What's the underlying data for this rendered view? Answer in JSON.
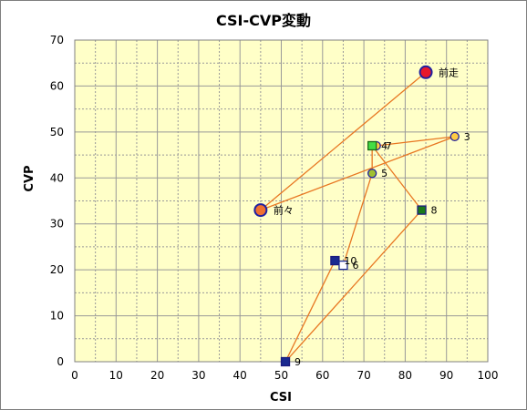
{
  "chart_data": {
    "type": "scatter",
    "title": "CSI-CVP変動",
    "xlabel": "CSI",
    "ylabel": "CVP",
    "xlim": [
      0,
      100
    ],
    "ylim": [
      0,
      70
    ],
    "xticks": [
      0,
      10,
      20,
      30,
      40,
      50,
      60,
      70,
      80,
      90,
      100
    ],
    "yticks": [
      0,
      10,
      20,
      30,
      40,
      50,
      60,
      70
    ],
    "grid": true,
    "colors": {
      "plot_bg": "#ffffc8",
      "grid": "#999999",
      "line": "#e87722"
    },
    "points": [
      {
        "label": "前々",
        "x": 45,
        "y": 33,
        "shape": "circle",
        "fill": "#f07030",
        "stroke": "#2020a0",
        "size": "large"
      },
      {
        "label": "前走",
        "x": 85,
        "y": 63,
        "shape": "circle",
        "fill": "#e8192c",
        "stroke": "#2020a0",
        "size": "large"
      },
      {
        "label": "3",
        "x": 92,
        "y": 49,
        "shape": "circle",
        "fill": "#ffcc44",
        "stroke": "#2020a0",
        "size": "small"
      },
      {
        "label": "5",
        "x": 72,
        "y": 41,
        "shape": "circle",
        "fill": "#a0c030",
        "stroke": "#2020a0",
        "size": "small"
      },
      {
        "label": "7",
        "x": 73,
        "y": 47,
        "shape": "circle",
        "fill": "#ffcc44",
        "stroke": "#2020a0",
        "size": "small"
      },
      {
        "label": "4",
        "x": 72,
        "y": 47,
        "shape": "square",
        "fill": "#44dd44",
        "stroke": "#1a6a1a",
        "size": "small"
      },
      {
        "label": "8",
        "x": 84,
        "y": 33,
        "shape": "square",
        "fill": "#1a7a1a",
        "stroke": "#1a1a80",
        "size": "small"
      },
      {
        "label": "10",
        "x": 63,
        "y": 22,
        "shape": "square",
        "fill": "#1a2a90",
        "stroke": "#1a1a80",
        "size": "small"
      },
      {
        "label": "6",
        "x": 65,
        "y": 21,
        "shape": "square",
        "fill": "#ffffff",
        "stroke": "#1a2a90",
        "size": "small"
      },
      {
        "label": "9",
        "x": 51,
        "y": 0,
        "shape": "square",
        "fill": "#1a2a90",
        "stroke": "#1a1a80",
        "size": "small"
      }
    ],
    "path": [
      [
        85,
        63
      ],
      [
        45,
        33
      ],
      [
        92,
        49
      ],
      [
        73,
        47
      ],
      [
        72,
        47
      ],
      [
        84,
        33
      ],
      [
        51,
        0
      ],
      [
        63,
        22
      ],
      [
        65,
        21
      ],
      [
        72,
        41
      ],
      [
        72,
        47
      ]
    ]
  }
}
